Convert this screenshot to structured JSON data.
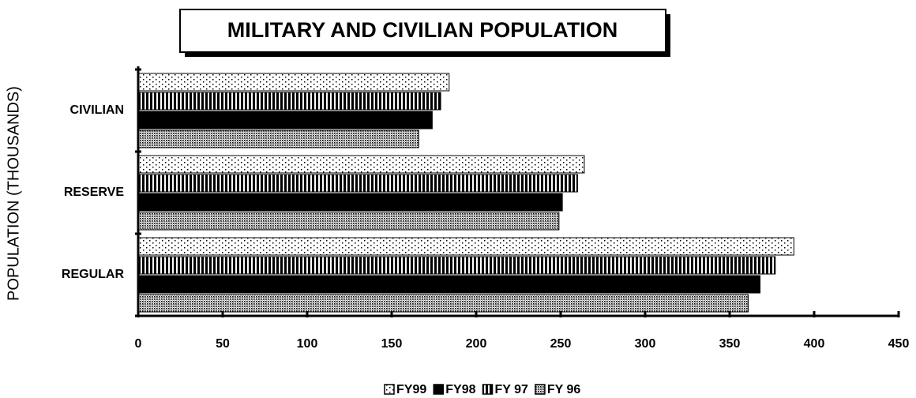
{
  "chart_data": {
    "type": "hbar",
    "title": "MILITARY AND CIVILIAN POPULATION",
    "y_label": "POPULATION (THOUSANDS)",
    "categories": [
      "CIVILIAN",
      "RESERVE",
      "REGULAR"
    ],
    "series": [
      {
        "name": "FY99",
        "color": "#000000",
        "values": [
          184,
          264,
          388
        ]
      },
      {
        "name": "FY98",
        "color": "#000000",
        "values": [
          174,
          251,
          368
        ]
      },
      {
        "name": "FY 97",
        "color": "#000000",
        "values": [
          179,
          260,
          377
        ]
      },
      {
        "name": "FY 96",
        "color": "#000000",
        "values": [
          166,
          249,
          361
        ]
      }
    ],
    "xlim": [
      0,
      450
    ],
    "xticks": [
      0,
      50,
      100,
      150,
      200,
      250,
      300,
      350,
      400,
      450
    ]
  }
}
